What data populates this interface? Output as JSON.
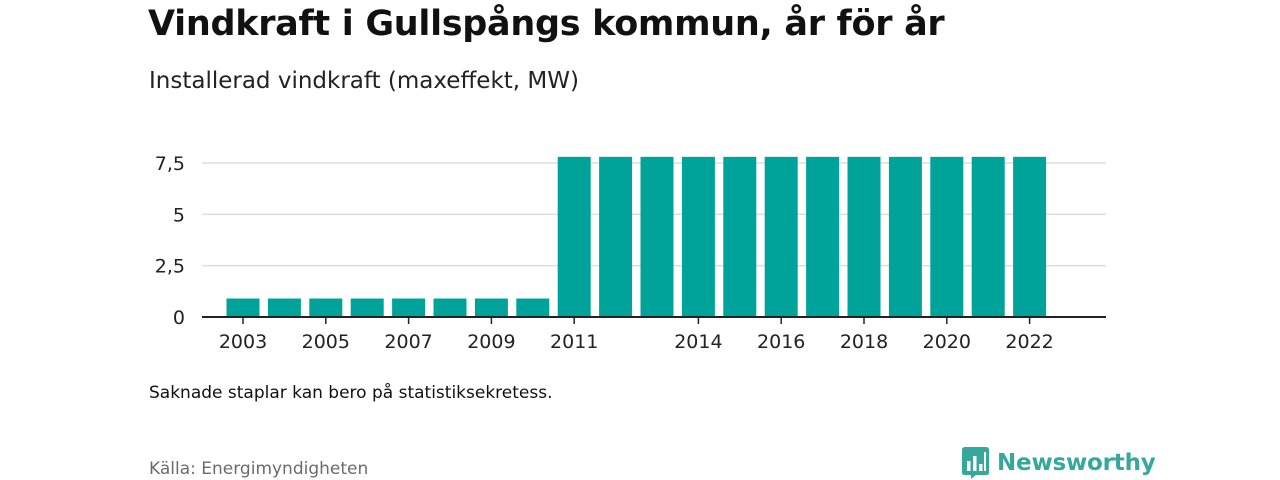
{
  "header": {
    "title": "Vindkraft i Gullspångs kommun, år för år",
    "subtitle": "Installerad vindkraft (maxeffekt, MW)"
  },
  "footer": {
    "note": "Saknade staplar kan bero på statistiksekretess.",
    "source": "Källa: Energimyndigheten",
    "brand": "Newsworthy"
  },
  "colors": {
    "bar": "#00a39a",
    "grid": "#dddddd",
    "axis": "#222222",
    "brand": "#35a89b"
  },
  "icons": {
    "brand_logo": "newsworthy-logo-icon"
  },
  "chart_data": {
    "type": "bar",
    "title": "Vindkraft i Gullspångs kommun, år för år",
    "subtitle": "Installerad vindkraft (maxeffekt, MW)",
    "categories": [
      "2003",
      "2004",
      "2005",
      "2006",
      "2007",
      "2008",
      "2009",
      "2010",
      "2011",
      "2012",
      "2013",
      "2014",
      "2015",
      "2016",
      "2017",
      "2018",
      "2019",
      "2020",
      "2021",
      "2022"
    ],
    "values": [
      0.9,
      0.9,
      0.9,
      0.9,
      0.9,
      0.9,
      0.9,
      0.9,
      7.8,
      7.8,
      7.8,
      7.8,
      7.8,
      7.8,
      7.8,
      7.8,
      7.8,
      7.8,
      7.8,
      7.8
    ],
    "x_tick_labels": [
      "2003",
      "2005",
      "2007",
      "2009",
      "2011",
      "2014",
      "2016",
      "2018",
      "2020",
      "2022"
    ],
    "y_ticks": [
      0,
      2.5,
      5,
      7.5
    ],
    "y_tick_labels": [
      "0",
      "2,5",
      "5",
      "7,5"
    ],
    "ylim": [
      0,
      7.5
    ],
    "grid": true,
    "legend": "none",
    "xlabel": "",
    "ylabel": ""
  }
}
